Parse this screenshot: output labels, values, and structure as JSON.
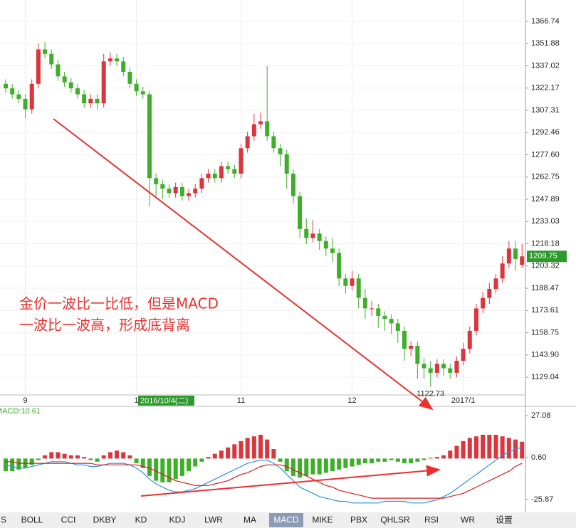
{
  "chart_data": [
    {
      "type": "candlestick",
      "categories": [
        null,
        null,
        null,
        "9",
        null,
        null,
        null,
        null,
        null,
        null,
        null,
        null,
        null,
        null,
        null,
        null,
        null,
        null,
        null,
        null,
        "1",
        null,
        null,
        null,
        null,
        null,
        null,
        null,
        null,
        null,
        null,
        null,
        null,
        null,
        null,
        null,
        "11",
        null,
        null,
        null,
        null,
        null,
        null,
        null,
        null,
        null,
        null,
        null,
        null,
        null,
        null,
        null,
        null,
        "12",
        null,
        null,
        null,
        null,
        null,
        null,
        null,
        null,
        null,
        null,
        null,
        null,
        null,
        null,
        null,
        null,
        "2017/1",
        null,
        null,
        null,
        null,
        null,
        null,
        null,
        null,
        null
      ],
      "open": [
        1325,
        1322,
        1318,
        1315,
        1308,
        1325,
        1348,
        1345,
        1338,
        1330,
        1326,
        1322,
        1318,
        1312,
        1315,
        1312,
        1340,
        1342,
        1340,
        1333,
        1325,
        1320,
        1318,
        1262,
        1258,
        1255,
        1252,
        1256,
        1250,
        1252,
        1255,
        1262,
        1265,
        1262,
        1270,
        1268,
        1265,
        1282,
        1290,
        1298,
        1300,
        1290,
        1282,
        1278,
        1265,
        1250,
        1228,
        1222,
        1225,
        1220,
        1215,
        1212,
        1195,
        1190,
        1195,
        1182,
        1175,
        1175,
        1170,
        1168,
        1165,
        1160,
        1148,
        1150,
        1138,
        1135,
        1132,
        1138,
        1135,
        1132,
        1140,
        1148,
        1160,
        1175,
        1182,
        1188,
        1195,
        1205,
        1215,
        1204
      ],
      "high": [
        1328,
        1325,
        1321,
        1318,
        1328,
        1352,
        1353,
        1348,
        1341,
        1333,
        1329,
        1325,
        1321,
        1318,
        1318,
        1345,
        1346,
        1345,
        1343,
        1336,
        1328,
        1323,
        1320,
        1265,
        1261,
        1258,
        1259,
        1259,
        1255,
        1258,
        1265,
        1268,
        1268,
        1273,
        1273,
        1271,
        1285,
        1293,
        1305,
        1306,
        1337,
        1293,
        1285,
        1281,
        1268,
        1253,
        1235,
        1234,
        1228,
        1223,
        1222,
        1215,
        1198,
        1200,
        1198,
        1188,
        1180,
        1178,
        1173,
        1171,
        1168,
        1163,
        1153,
        1153,
        1142,
        1140,
        1141,
        1141,
        1138,
        1143,
        1152,
        1163,
        1178,
        1186,
        1192,
        1198,
        1210,
        1220,
        1220,
        1218
      ],
      "low": [
        1319,
        1315,
        1312,
        1302,
        1305,
        1322,
        1342,
        1335,
        1327,
        1323,
        1319,
        1315,
        1309,
        1309,
        1308,
        1309,
        1337,
        1337,
        1330,
        1322,
        1317,
        1315,
        1243,
        1250,
        1248,
        1249,
        1249,
        1247,
        1247,
        1249,
        1252,
        1259,
        1259,
        1259,
        1265,
        1262,
        1262,
        1279,
        1287,
        1295,
        1287,
        1279,
        1270,
        1255,
        1245,
        1222,
        1218,
        1219,
        1214,
        1210,
        1206,
        1190,
        1185,
        1187,
        1175,
        1168,
        1170,
        1162,
        1160,
        1158,
        1152,
        1140,
        1143,
        1128,
        1128,
        1122.73,
        1129,
        1130,
        1128,
        1129,
        1137,
        1145,
        1157,
        1172,
        1178,
        1185,
        1192,
        1202,
        1200,
        1202
      ],
      "close": [
        1322,
        1318,
        1315,
        1308,
        1325,
        1348,
        1345,
        1338,
        1330,
        1326,
        1322,
        1318,
        1312,
        1315,
        1312,
        1340,
        1342,
        1340,
        1333,
        1325,
        1320,
        1318,
        1262,
        1258,
        1255,
        1252,
        1256,
        1250,
        1252,
        1255,
        1262,
        1265,
        1262,
        1270,
        1268,
        1265,
        1282,
        1290,
        1298,
        1300,
        1290,
        1282,
        1278,
        1265,
        1250,
        1228,
        1222,
        1225,
        1220,
        1215,
        1212,
        1195,
        1190,
        1195,
        1182,
        1175,
        1175,
        1170,
        1168,
        1165,
        1160,
        1148,
        1150,
        1138,
        1135,
        1132,
        1138,
        1135,
        1132,
        1140,
        1148,
        1160,
        1175,
        1182,
        1188,
        1195,
        1205,
        1215,
        1208,
        1209.75
      ],
      "up_color": "#d9363e",
      "down_color": "#3fae2a",
      "ylim": [
        1117.2,
        1381.0
      ],
      "yticks": [
        1366.74,
        1351.88,
        1337.02,
        1322.17,
        1307.31,
        1292.46,
        {
          "value": 1277.6,
          "label": "1277.60"
        },
        1262.75,
        1247.89,
        1233.03,
        1218.18,
        1203.32,
        1188.47,
        1173.61,
        1158.75,
        {
          "value": 1143.9,
          "label": "1143.90"
        },
        1129.04
      ],
      "grid": true,
      "cursor_label": "2016/10/4(二)",
      "annotation": [
        "金价一波比一比低，但是MACD",
        "一波比一波高，形成底背离"
      ]
    },
    {
      "type": "macd",
      "title": "MACD:10.61",
      "histogram": [
        -8,
        -8,
        -7,
        -6,
        -4,
        -1,
        2,
        4,
        4,
        3,
        2,
        2,
        1,
        -1,
        -2,
        2,
        4,
        5,
        4,
        2,
        -3,
        -6,
        -11,
        -14,
        -15,
        -15,
        -13,
        -11,
        -8,
        -5,
        -2,
        1,
        3,
        5,
        7,
        9,
        11,
        13,
        14,
        15,
        12,
        6,
        -2,
        -8,
        -11,
        -12,
        -11,
        -10,
        -10,
        -9,
        -8,
        -7,
        -6,
        -5,
        -4,
        -3,
        -3,
        -2,
        -2,
        -1,
        -2,
        -3,
        -3,
        -2,
        -1,
        0.5,
        1,
        2,
        5,
        8,
        11,
        13,
        14,
        15,
        15,
        15,
        14,
        13,
        12,
        10.61
      ],
      "dif": [
        -4,
        -5,
        -6,
        -6,
        -5,
        -4,
        -3,
        -2,
        -2,
        -2,
        -3,
        -4,
        -4,
        -5,
        -5,
        -4,
        -3,
        -3,
        -3,
        -4,
        -6,
        -9,
        -13,
        -16,
        -18,
        -20,
        -21,
        -21,
        -20,
        -19,
        -17,
        -15,
        -13,
        -11,
        -9,
        -7,
        -5,
        -3,
        -2,
        -1,
        -1,
        -3,
        -6,
        -10,
        -14,
        -18,
        -20,
        -22,
        -24,
        -25,
        -26,
        -27,
        -27,
        -28,
        -28,
        -28,
        -28,
        -28,
        -27,
        -27,
        -27,
        -27,
        -28,
        -28,
        -28,
        -27,
        -26,
        -24,
        -22,
        -19,
        -16,
        -13,
        -10,
        -7,
        -4,
        -1,
        2,
        4,
        6,
        7
      ],
      "dea": [
        -2,
        -2,
        -3,
        -3,
        -3,
        -3,
        -3,
        -3,
        -3,
        -3,
        -3,
        -3,
        -3,
        -3,
        -4,
        -4,
        -4,
        -4,
        -4,
        -4,
        -4,
        -5,
        -6,
        -8,
        -10,
        -12,
        -14,
        -15,
        -16,
        -17,
        -17,
        -17,
        -16,
        -15,
        -14,
        -12,
        -10,
        -9,
        -7,
        -5,
        -4,
        -4,
        -4,
        -5,
        -7,
        -9,
        -11,
        -13,
        -15,
        -17,
        -18,
        -20,
        -21,
        -22,
        -23,
        -24,
        -25,
        -25,
        -25,
        -25,
        -25,
        -25,
        -25,
        -25,
        -25,
        -25,
        -25,
        -25,
        -24,
        -23,
        -22,
        -20,
        -18,
        -16,
        -14,
        -12,
        -10,
        -8,
        -5,
        -3
      ],
      "dif_color": "#2f8fe0",
      "dea_color": "#d32020",
      "up_color": "#d9363e",
      "down_color": "#3fae2a",
      "ylim": [
        -33.05,
        32.5
      ],
      "yticks": [
        27.08,
        {
          "value": 0.6,
          "label": "0.60"
        },
        -25.87
      ]
    }
  ],
  "toolbar": {
    "tabs": [
      "S",
      "BOLL",
      "CCI",
      "DKBY",
      "KD",
      "KDJ",
      "LWR",
      "MA",
      "MACD",
      "MIKE",
      "PBX",
      "QHLSR",
      "RSI",
      "WR",
      "设置"
    ],
    "selected": 8
  }
}
